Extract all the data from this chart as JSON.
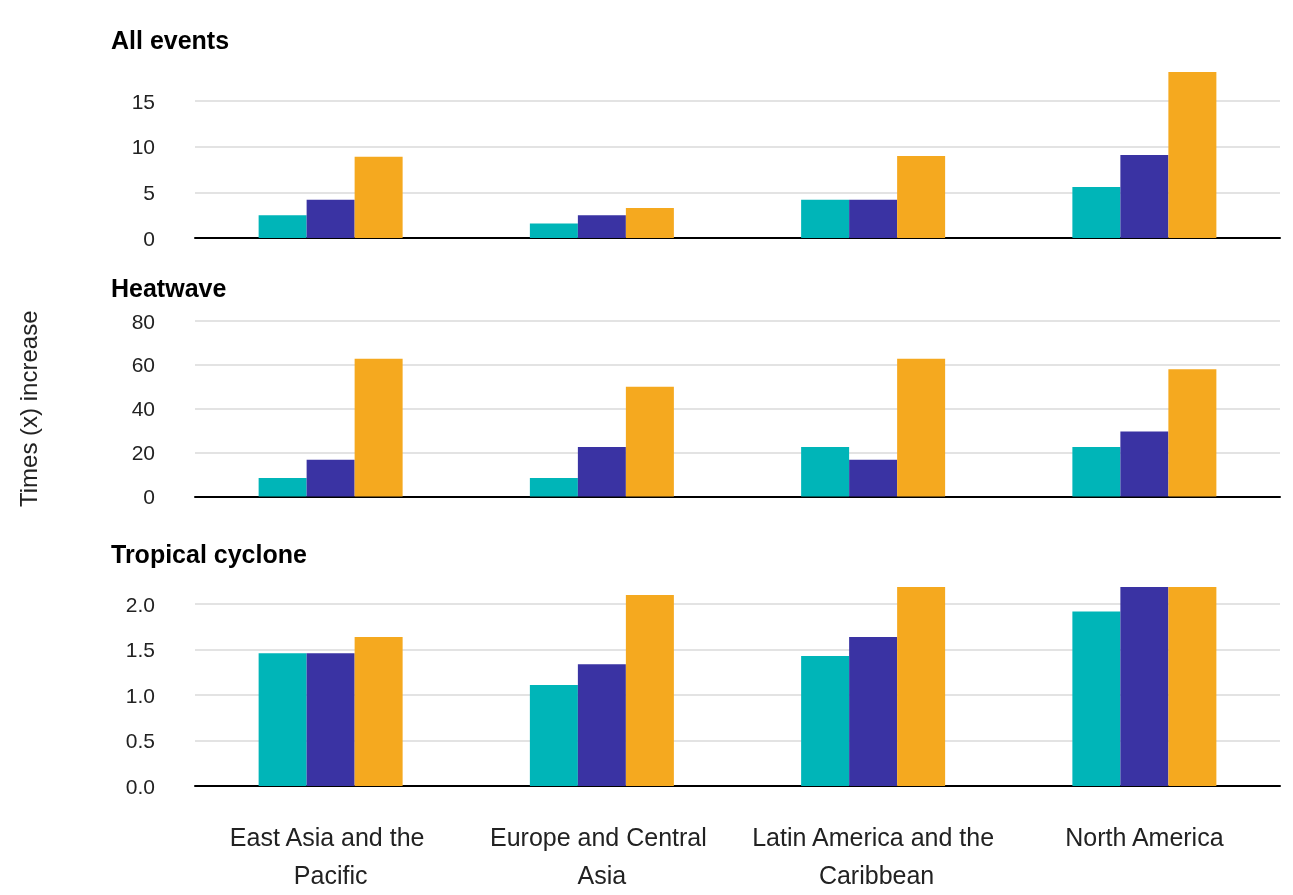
{
  "chart_data": [
    {
      "type": "bar",
      "title": "All events",
      "categories": [
        "East Asia and the Pacific",
        "Europe and Central Asia",
        "Latin America and the Caribbean",
        "North America"
      ],
      "series": [
        {
          "color": "#00b5b8",
          "values": [
            2.5,
            1.6,
            4.2,
            5.6
          ]
        },
        {
          "color": "#3a33a3",
          "values": [
            4.2,
            2.5,
            4.2,
            9.1
          ]
        },
        {
          "color": "#f5a91f",
          "values": [
            8.9,
            3.3,
            9.0,
            18.2
          ]
        }
      ],
      "ylim": [
        0,
        18.2
      ],
      "yticks": [
        0,
        5,
        10,
        15
      ],
      "grid": "y",
      "tick_labels": "y"
    },
    {
      "type": "bar",
      "title": "Heatwave",
      "ylabel": "Times (x) increase",
      "categories": [
        "East Asia and the Pacific",
        "Europe and Central Asia",
        "Latin America and the Caribbean",
        "North America"
      ],
      "series": [
        {
          "color": "#00b5b8",
          "values": [
            8.4,
            8.4,
            22.6,
            22.6
          ]
        },
        {
          "color": "#3a33a3",
          "values": [
            16.8,
            22.6,
            16.8,
            29.6
          ]
        },
        {
          "color": "#f5a91f",
          "values": [
            62.8,
            50,
            62.8,
            58
          ]
        }
      ],
      "ylim": [
        0,
        80
      ],
      "yticks": [
        0,
        20,
        40,
        60,
        80
      ],
      "grid": "y",
      "tick_labels": "y"
    },
    {
      "type": "bar",
      "title": "Tropical cyclone",
      "categories": [
        "East Asia and the Pacific",
        "Europe and Central Asia",
        "Latin America and the Caribbean",
        "North America"
      ],
      "series": [
        {
          "color": "#00b5b8",
          "values": [
            1.46,
            1.11,
            1.43,
            1.92
          ]
        },
        {
          "color": "#3a33a3",
          "values": [
            1.46,
            1.34,
            1.64,
            2.19
          ]
        },
        {
          "color": "#f5a91f",
          "values": [
            1.64,
            2.1,
            2.19,
            2.19
          ]
        }
      ],
      "ylim": [
        0,
        2.2
      ],
      "yticks": [
        {
          "value": 0,
          "label": "0.0"
        },
        {
          "value": 0.5,
          "label": "0.5"
        },
        {
          "value": 1,
          "label": "1.0"
        },
        {
          "value": 1.5,
          "label": "1.5"
        },
        {
          "value": 2,
          "label": "2.0"
        }
      ],
      "grid": "y"
    }
  ]
}
